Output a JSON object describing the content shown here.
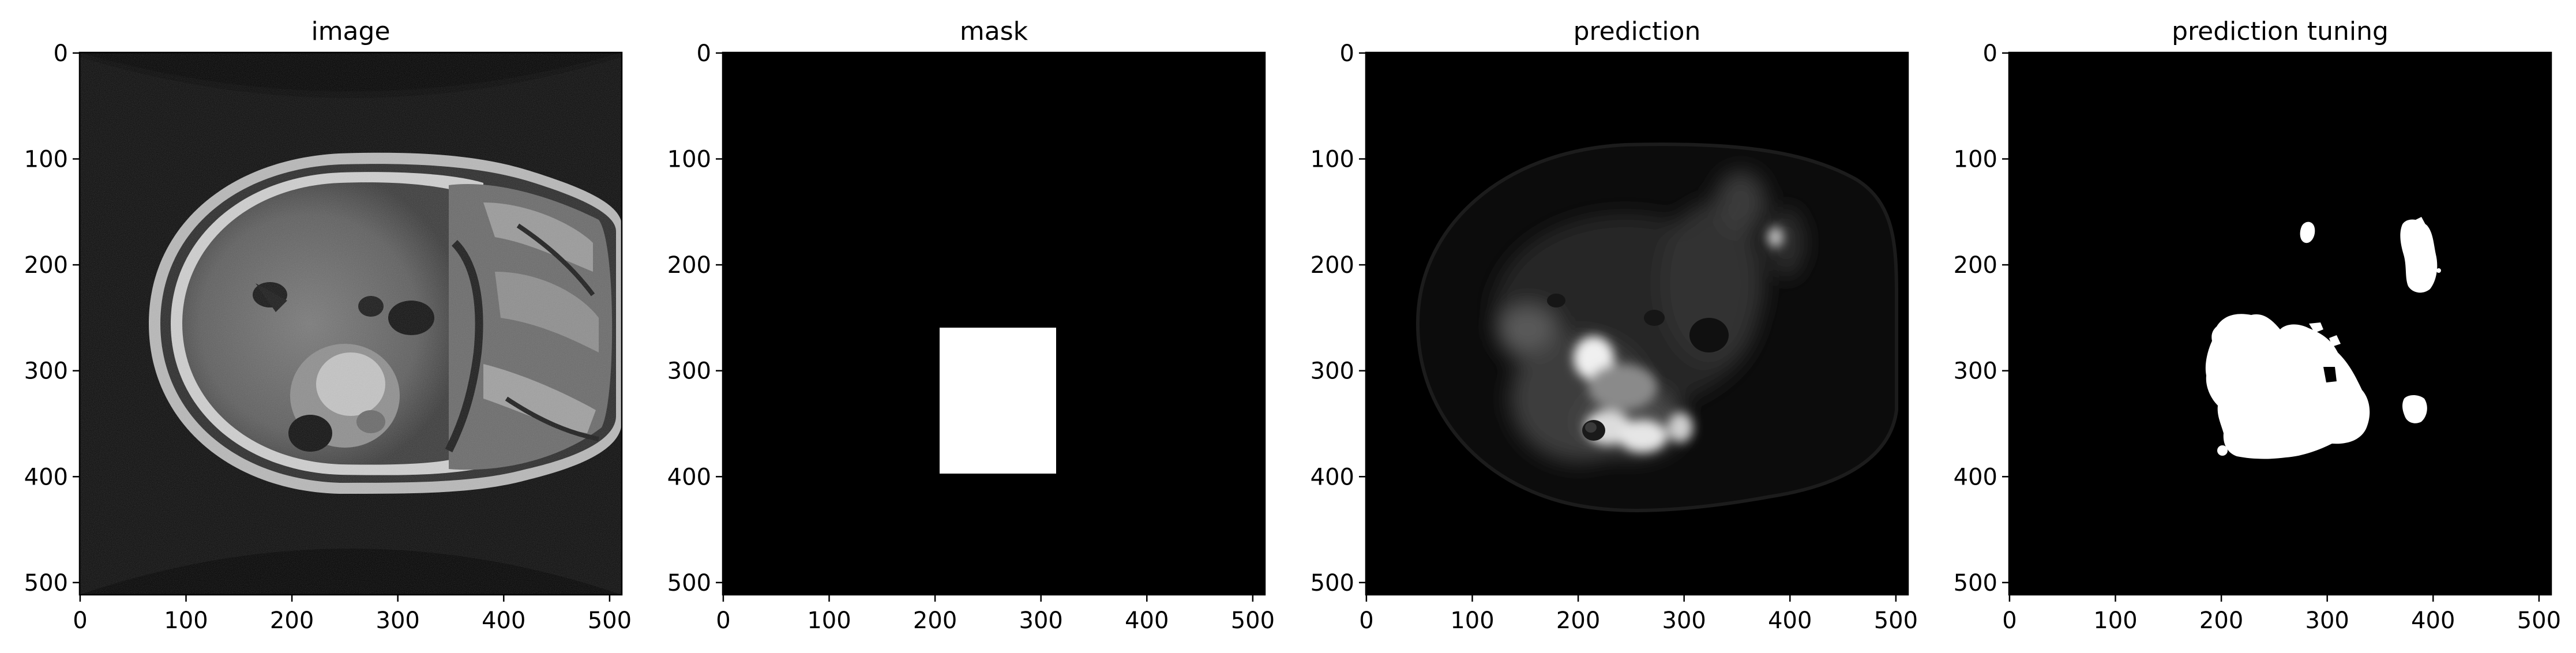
{
  "figure": {
    "panels": [
      {
        "title": "image",
        "kind": "mri",
        "x_ticks": [
          "0",
          "100",
          "200",
          "300",
          "400",
          "500"
        ],
        "y_ticks": [
          "0",
          "100",
          "200",
          "300",
          "400",
          "500"
        ]
      },
      {
        "title": "mask",
        "kind": "mask",
        "x_ticks": [
          "0",
          "100",
          "200",
          "300",
          "400",
          "500"
        ],
        "y_ticks": [
          "0",
          "100",
          "200",
          "300",
          "400",
          "500"
        ]
      },
      {
        "title": "prediction",
        "kind": "prediction",
        "x_ticks": [
          "0",
          "100",
          "200",
          "300",
          "400",
          "500"
        ],
        "y_ticks": [
          "0",
          "100",
          "200",
          "300",
          "400",
          "500"
        ]
      },
      {
        "title": "prediction tuning",
        "kind": "tuned",
        "x_ticks": [
          "0",
          "100",
          "200",
          "300",
          "400",
          "500"
        ],
        "y_ticks": [
          "0",
          "100",
          "200",
          "300",
          "400",
          "500"
        ]
      }
    ]
  },
  "colors": {
    "background": "#000000",
    "mask_fill": "#ffffff",
    "axis": "#000000"
  }
}
